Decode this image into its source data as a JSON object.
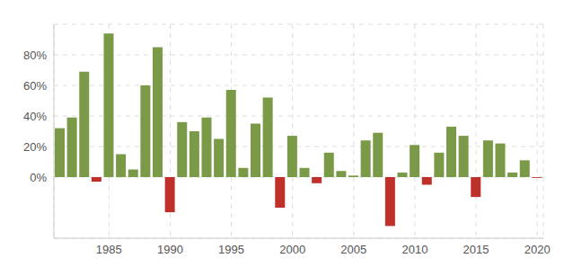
{
  "chart_data": {
    "type": "bar",
    "x": [
      1981,
      1982,
      1983,
      1984,
      1985,
      1986,
      1987,
      1988,
      1989,
      1990,
      1991,
      1992,
      1993,
      1994,
      1995,
      1996,
      1997,
      1998,
      1999,
      2000,
      2001,
      2002,
      2003,
      2004,
      2005,
      2006,
      2007,
      2008,
      2009,
      2010,
      2011,
      2012,
      2013,
      2014,
      2015,
      2016,
      2017,
      2018,
      2019,
      2020
    ],
    "values": [
      32,
      39,
      69,
      -3,
      94,
      15,
      5,
      60,
      85,
      -23,
      36,
      30,
      39,
      25,
      57,
      6,
      35,
      52,
      -20,
      27,
      6,
      -4,
      16,
      4,
      1,
      24,
      29,
      -32,
      3,
      21,
      -5,
      16,
      33,
      27,
      -13,
      24,
      22,
      3,
      11,
      -0.5
    ],
    "colors": [
      "#7a9a48",
      "#7a9a48",
      "#7a9a48",
      "#c0302b",
      "#7a9a48",
      "#7a9a48",
      "#7a9a48",
      "#7a9a48",
      "#7a9a48",
      "#c0302b",
      "#7a9a48",
      "#7a9a48",
      "#7a9a48",
      "#7a9a48",
      "#7a9a48",
      "#7a9a48",
      "#7a9a48",
      "#7a9a48",
      "#c0302b",
      "#7a9a48",
      "#7a9a48",
      "#c0302b",
      "#7a9a48",
      "#7a9a48",
      "#7a9a48",
      "#7a9a48",
      "#7a9a48",
      "#c0302b",
      "#7a9a48",
      "#7a9a48",
      "#c0302b",
      "#7a9a48",
      "#7a9a48",
      "#7a9a48",
      "#c0302b",
      "#7a9a48",
      "#7a9a48",
      "#7a9a48",
      "#7a9a48",
      "#c0302b"
    ],
    "xlim": [
      1980.5,
      2020.5
    ],
    "xticks": [
      1985,
      1990,
      1995,
      2000,
      2005,
      2010,
      2015,
      2020
    ],
    "ylim": [
      -40,
      100
    ],
    "yticks": [
      {
        "value": 0,
        "label": "0%"
      },
      {
        "value": 20,
        "label": "20%"
      },
      {
        "value": 40,
        "label": "40%"
      },
      {
        "value": 60,
        "label": "60%"
      },
      {
        "value": 80,
        "label": "80%"
      }
    ],
    "grid": true
  }
}
